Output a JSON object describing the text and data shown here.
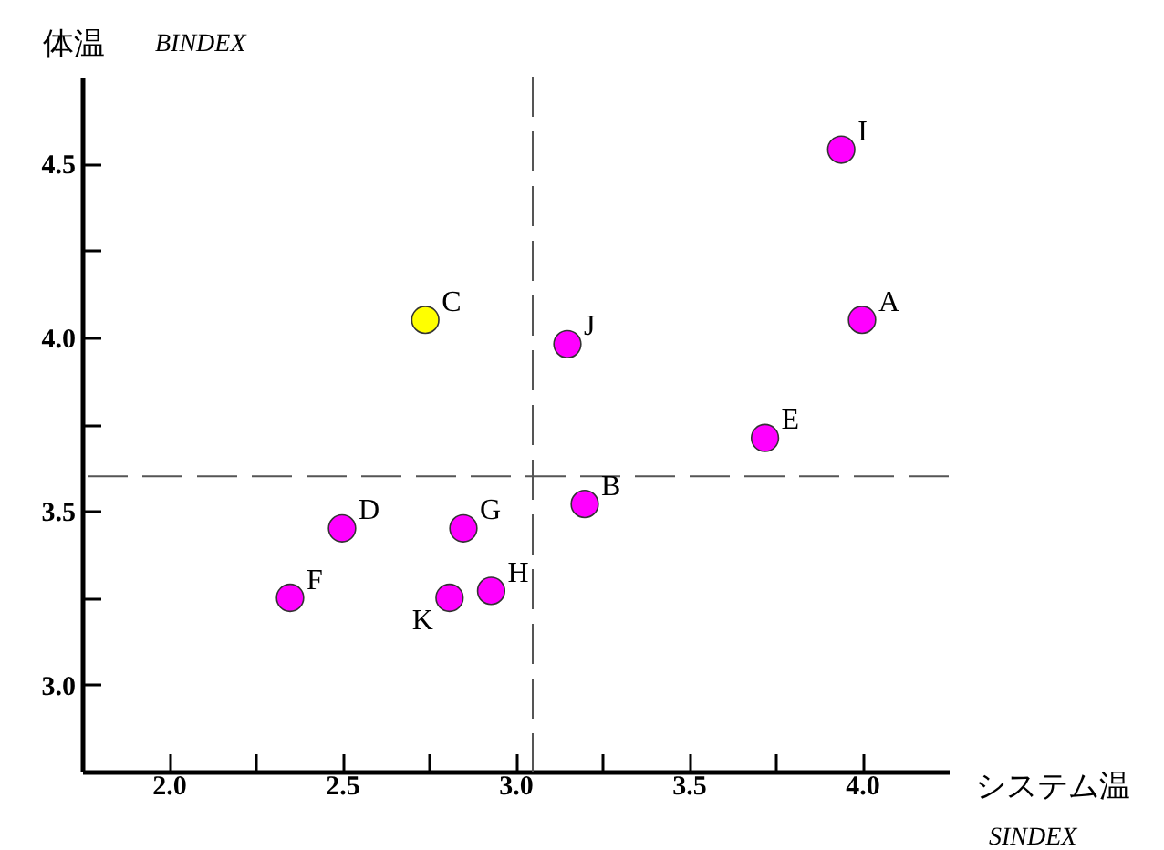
{
  "chart_data": {
    "type": "scatter",
    "xlabel": "システム温",
    "ylabel": "体温",
    "annotations": [
      "BINDEX",
      "SINDEX",
      {
        "text": "A",
        "x": 4.0,
        "y": 4.05
      },
      {
        "text": "B",
        "x": 3.2,
        "y": 3.52
      },
      {
        "text": "C",
        "x": 2.74,
        "y": 4.05
      },
      {
        "text": "D",
        "x": 2.5,
        "y": 3.45
      },
      {
        "text": "E",
        "x": 3.72,
        "y": 3.71
      },
      {
        "text": "F",
        "x": 2.35,
        "y": 3.25
      },
      {
        "text": "G",
        "x": 2.85,
        "y": 3.45
      },
      {
        "text": "H",
        "x": 2.93,
        "y": 3.27
      },
      {
        "text": "I",
        "x": 3.94,
        "y": 4.54
      },
      {
        "text": "J",
        "x": 3.15,
        "y": 3.98
      },
      {
        "text": "K",
        "x": 2.81,
        "y": 3.25
      }
    ],
    "x": [
      4.0,
      3.2,
      2.74,
      2.5,
      3.72,
      2.35,
      2.85,
      2.93,
      3.94,
      3.15,
      2.81
    ],
    "values": [
      4.05,
      3.52,
      4.05,
      3.45,
      3.71,
      3.25,
      3.45,
      3.27,
      4.54,
      3.98,
      3.25
    ],
    "colors": [
      "#ff00ff",
      "#ff00ff",
      "#ffff00",
      "#ff00ff",
      "#ff00ff",
      "#ff00ff",
      "#ff00ff",
      "#ff00ff",
      "#ff00ff",
      "#ff00ff",
      "#ff00ff"
    ],
    "marker": "circle",
    "xlim": [
      1.75,
      4.25
    ],
    "ylim": [
      2.75,
      4.75
    ],
    "xticks": [
      {
        "value": 2,
        "label": "2.0"
      },
      {
        "value": 2.25,
        "label": null
      },
      2.5,
      {
        "value": 2.75,
        "label": null
      },
      {
        "value": 3,
        "label": "3.0"
      },
      {
        "value": 3.25,
        "label": null
      },
      3.5,
      {
        "value": 3.75,
        "label": null
      },
      {
        "value": 4,
        "label": "4.0"
      }
    ],
    "yticks": [
      {
        "value": 3,
        "label": "3.0"
      },
      {
        "value": 3.25,
        "label": null
      },
      3.5,
      {
        "value": 3.75,
        "label": null
      },
      {
        "value": 4,
        "label": "4.0"
      },
      {
        "value": 4.25,
        "label": null
      },
      4.5
    ],
    "ref_lines": [
      {
        "axis": "x",
        "value": 3.05,
        "line_style": "dashed"
      },
      {
        "axis": "y",
        "value": 3.6,
        "line_style": "dashed"
      }
    ],
    "grid": false
  }
}
